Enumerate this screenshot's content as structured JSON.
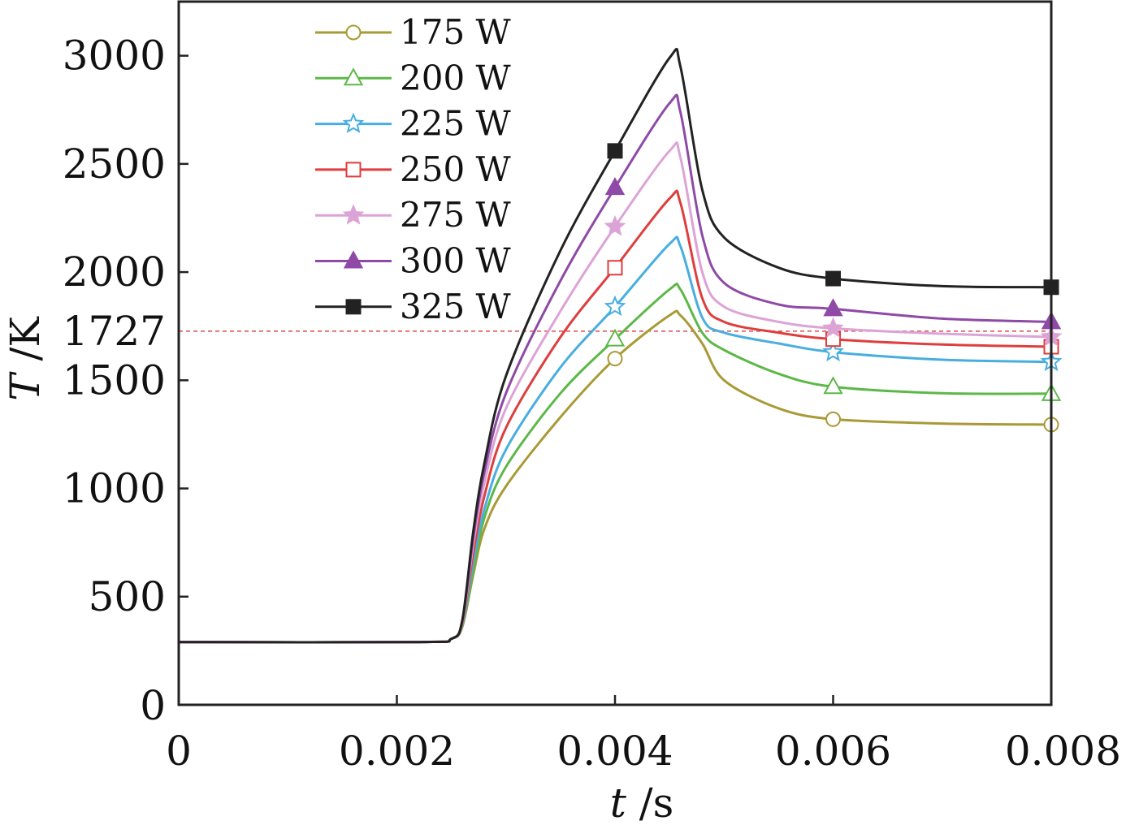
{
  "chart_data": {
    "type": "line",
    "xlabel_var": "t",
    "xlabel_unit": " /s",
    "ylabel_var": "T",
    "ylabel_unit": " /K",
    "xlim": [
      0,
      0.008
    ],
    "ylim": [
      0,
      3250
    ],
    "x_ticks": [
      0,
      0.002,
      0.004,
      0.006,
      0.008
    ],
    "x_tick_labels": [
      "0",
      "0.002",
      "0.004",
      "0.006",
      "0.008"
    ],
    "y_ticks": [
      0,
      500,
      1000,
      1500,
      2000,
      2500,
      3000
    ],
    "y_tick_labels": [
      "0",
      "500",
      "1000",
      "1500",
      "2000",
      "2500",
      "3000"
    ],
    "reference_line": {
      "y": 1727,
      "label": "1727",
      "color": "#e05555"
    },
    "grid": false,
    "legend_position": "top-left",
    "x": [
      0,
      0.0022,
      0.0025,
      0.0026,
      0.0027,
      0.0028,
      0.003,
      0.0035,
      0.004,
      0.0045,
      0.0046,
      0.0048,
      0.005,
      0.0055,
      0.006,
      0.007,
      0.008
    ],
    "series": [
      {
        "name": "175 W",
        "color": "#a89a36",
        "marker": "circle-open",
        "values": [
          290,
          290,
          305,
          360,
          600,
          810,
          1010,
          1330,
          1600,
          1800,
          1800,
          1670,
          1500,
          1370,
          1320,
          1300,
          1295
        ]
      },
      {
        "name": "200 W",
        "color": "#5cb848",
        "marker": "triangle-open",
        "values": [
          290,
          290,
          305,
          365,
          620,
          860,
          1100,
          1440,
          1690,
          1920,
          1920,
          1720,
          1640,
          1530,
          1470,
          1440,
          1438
        ]
      },
      {
        "name": "225 W",
        "color": "#48aee0",
        "marker": "star-open",
        "values": [
          290,
          290,
          305,
          370,
          660,
          900,
          1180,
          1560,
          1840,
          2130,
          2120,
          1790,
          1720,
          1670,
          1630,
          1595,
          1585
        ]
      },
      {
        "name": "250 W",
        "color": "#de3e3e",
        "marker": "square-open",
        "values": [
          290,
          290,
          305,
          375,
          700,
          960,
          1280,
          1700,
          2020,
          2340,
          2320,
          1880,
          1770,
          1720,
          1690,
          1665,
          1655
        ]
      },
      {
        "name": "275 W",
        "color": "#dca4d6",
        "marker": "star-filled",
        "values": [
          290,
          290,
          305,
          380,
          740,
          1020,
          1370,
          1820,
          2210,
          2560,
          2530,
          2000,
          1840,
          1770,
          1740,
          1715,
          1700
        ]
      },
      {
        "name": "300 W",
        "color": "#8e4aa6",
        "marker": "triangle-filled",
        "values": [
          290,
          290,
          305,
          385,
          770,
          1070,
          1440,
          1960,
          2390,
          2780,
          2740,
          2170,
          1950,
          1850,
          1830,
          1785,
          1770
        ]
      },
      {
        "name": "325 W",
        "color": "#222222",
        "marker": "square-filled",
        "values": [
          290,
          290,
          305,
          390,
          800,
          1110,
          1520,
          2100,
          2560,
          2990,
          2950,
          2380,
          2160,
          2020,
          1970,
          1935,
          1930
        ]
      }
    ],
    "marker_x": [
      0.004,
      0.006,
      0.008
    ]
  }
}
